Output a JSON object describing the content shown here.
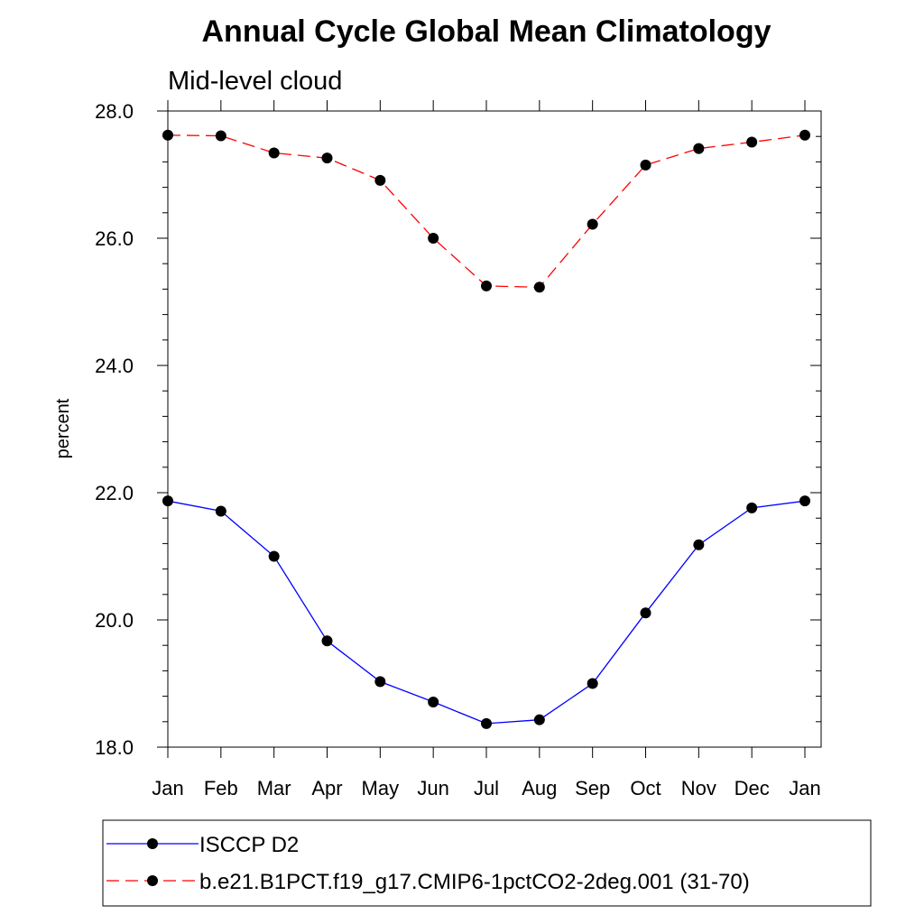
{
  "chart_data": {
    "type": "line",
    "title": "Annual Cycle Global Mean Climatology",
    "subtitle": "Mid-level cloud",
    "xlabel": "",
    "ylabel": "percent",
    "categories": [
      "Jan",
      "Feb",
      "Mar",
      "Apr",
      "May",
      "Jun",
      "Jul",
      "Aug",
      "Sep",
      "Oct",
      "Nov",
      "Dec",
      "Jan"
    ],
    "ylim": [
      18.0,
      28.0
    ],
    "yticks": [
      "18.0",
      "20.0",
      "22.0",
      "24.0",
      "26.0",
      "28.0"
    ],
    "grid": false,
    "legend_position": "bottom",
    "series": [
      {
        "name": "ISCCP D2",
        "color": "#0000ff",
        "line_style": "solid",
        "values": [
          21.87,
          21.71,
          21.0,
          19.67,
          19.03,
          18.71,
          18.37,
          18.43,
          19.0,
          20.11,
          21.18,
          21.76,
          21.87
        ]
      },
      {
        "name": "b.e21.B1PCT.f19_g17.CMIP6-1pctCO2-2deg.001 (31-70)",
        "color": "#ff0000",
        "line_style": "dashed",
        "values": [
          27.62,
          27.61,
          27.34,
          27.26,
          26.91,
          26.0,
          25.25,
          25.23,
          26.22,
          27.15,
          27.41,
          27.51,
          27.62
        ]
      }
    ]
  }
}
